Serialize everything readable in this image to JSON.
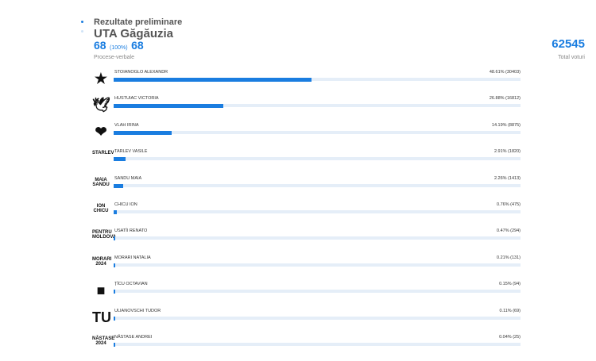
{
  "header": {
    "title": "Rezultate preliminare",
    "region": "UTA Găgăuzia",
    "counted": "68",
    "counted_percent": "(100%)",
    "total_reports": "68",
    "reports_label": "Procese-verbale",
    "total_votes": "62545",
    "total_votes_label": "Total voturi"
  },
  "candidates": [
    {
      "name": "STOIANOGLO ALEXANDR",
      "logo": "★",
      "percent": 48.61,
      "label": "48.61% (30403)"
    },
    {
      "name": "HUSTUIAC VICTORIA",
      "logo": "🕊",
      "percent": 26.88,
      "label": "26.88% (16812)"
    },
    {
      "name": "VLAH IRINA",
      "logo": "❤",
      "percent": 14.19,
      "label": "14.19% (8875)"
    },
    {
      "name": "TARLEV VASILE",
      "logo": "STARLEV",
      "percent": 2.91,
      "label": "2.91% (1820)"
    },
    {
      "name": "SANDU MAIA",
      "logo": "MAIA SANDU",
      "percent": 2.26,
      "label": "2.26% (1413)"
    },
    {
      "name": "CHICU ION",
      "logo": "ION CHICU",
      "percent": 0.76,
      "label": "0.76% (475)"
    },
    {
      "name": "USATÎI RENATO",
      "logo": "PENTRU MOLDOVA",
      "percent": 0.47,
      "label": "0.47% (294)"
    },
    {
      "name": "MORARI NATALIA",
      "logo": "MORARI 2024",
      "percent": 0.21,
      "label": "0.21% (131)"
    },
    {
      "name": "ȚÎCU OCTAVIAN",
      "logo": "■",
      "percent": 0.15,
      "label": "0.15% (94)"
    },
    {
      "name": "ULIANOVSCHI TUDOR",
      "logo": "TU",
      "percent": 0.11,
      "label": "0.11% (69)"
    },
    {
      "name": "NĂSTASE ANDREI",
      "logo": "NĂSTASE 2024",
      "percent": 0.04,
      "label": "0.04% (25)"
    }
  ]
}
